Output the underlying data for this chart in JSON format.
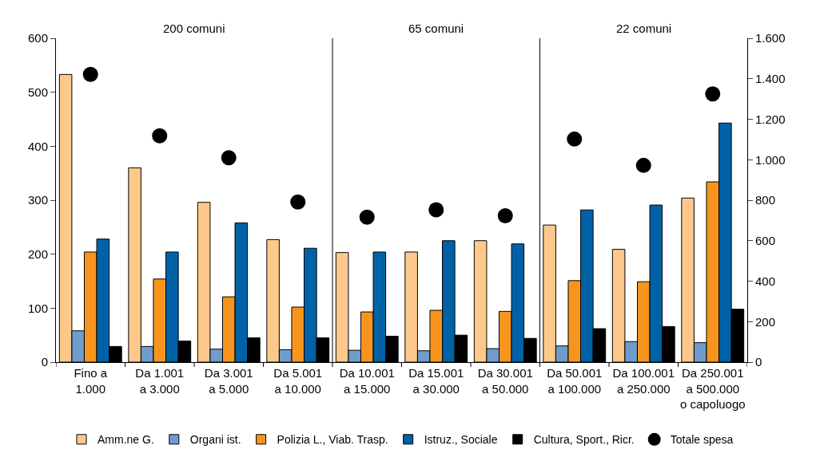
{
  "chart_data": {
    "type": "bar",
    "categories": [
      "Fino a\n1.000",
      "Da 1.001\na 3.000",
      "Da 3.001\na 5.000",
      "Da 5.001\na 10.000",
      "Da 10.001\na 15.000",
      "Da 15.001\na 30.000",
      "Da 30.001\na 50.000",
      "Da 50.001\na 100.000",
      "Da 100.001\na 250.000",
      "Da 250.001\na 500.000\no capoluogo"
    ],
    "series": [
      {
        "name": "Amm.ne G.",
        "color": "#fdc98a",
        "values": [
          533,
          360,
          296,
          227,
          203,
          204,
          225,
          254,
          209,
          304
        ]
      },
      {
        "name": "Organi ist.",
        "color": "#6f9ccc",
        "values": [
          58,
          29,
          24,
          23,
          22,
          21,
          25,
          30,
          38,
          36
        ]
      },
      {
        "name": "Polizia L., Viab. Trasp.",
        "color": "#f7941d",
        "values": [
          204,
          154,
          121,
          102,
          93,
          96,
          94,
          151,
          149,
          334
        ]
      },
      {
        "name": "Istruz., Sociale",
        "color": "#0062a6",
        "values": [
          228,
          204,
          258,
          211,
          204,
          225,
          219,
          282,
          291,
          443
        ]
      },
      {
        "name": "Cultura, Sport., Ricr.",
        "color": "#000000",
        "values": [
          29,
          39,
          45,
          45,
          48,
          50,
          44,
          62,
          66,
          98
        ]
      },
      {
        "name": "Totale spesa",
        "type": "scatter",
        "axis": "y2",
        "color": "#000000",
        "values": [
          1422,
          1118,
          1010,
          791,
          716,
          753,
          723,
          1102,
          972,
          1325
        ]
      }
    ],
    "ylim": [
      0,
      600
    ],
    "yticks": [
      0,
      100,
      200,
      300,
      400,
      500,
      600
    ],
    "y2lim": [
      0,
      1600
    ],
    "y2ticks": [
      {
        "value": 0,
        "label": "0"
      },
      {
        "value": 200,
        "label": "200"
      },
      {
        "value": 400,
        "label": "400"
      },
      {
        "value": 600,
        "label": "600"
      },
      {
        "value": 800,
        "label": "800"
      },
      {
        "value": 1000,
        "label": "1.000"
      },
      {
        "value": 1200,
        "label": "1.200"
      },
      {
        "value": 1400,
        "label": "1.400"
      },
      {
        "value": 1600,
        "label": "1.600"
      }
    ],
    "annotations": [
      "200 comuni",
      "65 comuni",
      "22 comuni"
    ],
    "marker": "circle",
    "legend": "bottom",
    "grid": false
  }
}
